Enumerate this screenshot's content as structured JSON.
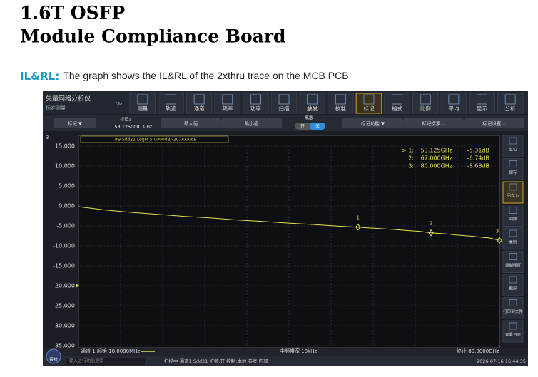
{
  "header": {
    "title_line1": "1.6T OSFP",
    "title_line2": "Module Compliance Board"
  },
  "caption": {
    "label": "IL&RL:",
    "text": "The graph shows the IL&RL of the 2xthru trace on the MCB PCB"
  },
  "screenshot": {
    "app_title": "矢量网络分析仪",
    "app_subtitle": "标准测量",
    "toolbar": [
      "测量",
      "轨迹",
      "通道",
      "频率",
      "功率",
      "扫描",
      "触发",
      "校准",
      "标记",
      "格式",
      "比例",
      "平均",
      "显示",
      "分析"
    ],
    "subbar": {
      "marker_menu": "标记 ▼",
      "marker_label": "标记1",
      "marker_value": "53.125000",
      "marker_unit": "GHz",
      "max": "最大值",
      "min": "最小值",
      "discrete": "离散",
      "on": "开",
      "off": "关",
      "marker_func": "标记功能 ▼",
      "search": "标记搜索...",
      "settings": "标记设置..."
    },
    "channel_number": "3",
    "plot": {
      "trace_label": "Tr9 Sdd21 LogM 5.0000dB/-20.0000dB",
      "xlim": [
        0.01,
        80
      ],
      "ylim": [
        -35,
        15
      ],
      "ref_level": -20,
      "yticks": [
        {
          "value": 15,
          "label": "15.000"
        },
        {
          "value": 10,
          "label": "10.000"
        },
        {
          "value": 5,
          "label": "5.000"
        },
        {
          "value": 0,
          "label": "0.000"
        },
        {
          "value": -5,
          "label": "-5.000"
        },
        {
          "value": -10,
          "label": "-10.000"
        },
        {
          "value": -15,
          "label": "-15.000"
        },
        {
          "value": -20,
          "label": "-20.000"
        },
        {
          "value": -25,
          "label": "-25.000"
        },
        {
          "value": -30,
          "label": "-30.000"
        },
        {
          "value": -35,
          "label": "-35.000"
        }
      ],
      "trace": {
        "color": "#e8e04a",
        "x": [
          0.01,
          5,
          10,
          15,
          20,
          25,
          30,
          35,
          40,
          45,
          50,
          53.125,
          55,
          60,
          63,
          65,
          67,
          70,
          72,
          75,
          77,
          78,
          79,
          80
        ],
        "y": [
          -0.2,
          -1.0,
          -1.6,
          -2.1,
          -2.6,
          -3.0,
          -3.5,
          -3.9,
          -4.3,
          -4.7,
          -5.1,
          -5.31,
          -5.5,
          -5.9,
          -6.2,
          -6.4,
          -6.74,
          -7.0,
          -7.3,
          -7.6,
          -7.9,
          -8.0,
          -8.3,
          -8.63
        ]
      },
      "markers": [
        {
          "name": "1",
          "index": "> 1:",
          "x": 53.125,
          "y": -5.31,
          "x_label": "53.125GHz",
          "y_label": "-5.31dB"
        },
        {
          "name": "2",
          "index": "2:",
          "x": 67,
          "y": -6.74,
          "x_label": "67.000GHz",
          "y_label": "-6.74dB"
        },
        {
          "name": "3",
          "index": "3:",
          "x": 80,
          "y": -8.63,
          "x_label": "80.000GHz",
          "y_label": "-8.63dB"
        }
      ]
    },
    "sidebar": [
      "复位",
      "保存",
      "另存为",
      "回顾",
      "录制",
      "录制频度",
      "截屏",
      "打印到文件",
      "查看日志"
    ],
    "status": {
      "start": "通道 1 起始 10.0000MHz",
      "ifbw": "中频带宽 10kHz",
      "stop": "终止 80.0000GHz",
      "search": "输入进行功能搜索",
      "scan": "扫描中 通道1 Sdd21 扩频:开 控制:本地 参考:内部",
      "time": "2026-07-16 16:44:35",
      "system": "系统"
    }
  }
}
